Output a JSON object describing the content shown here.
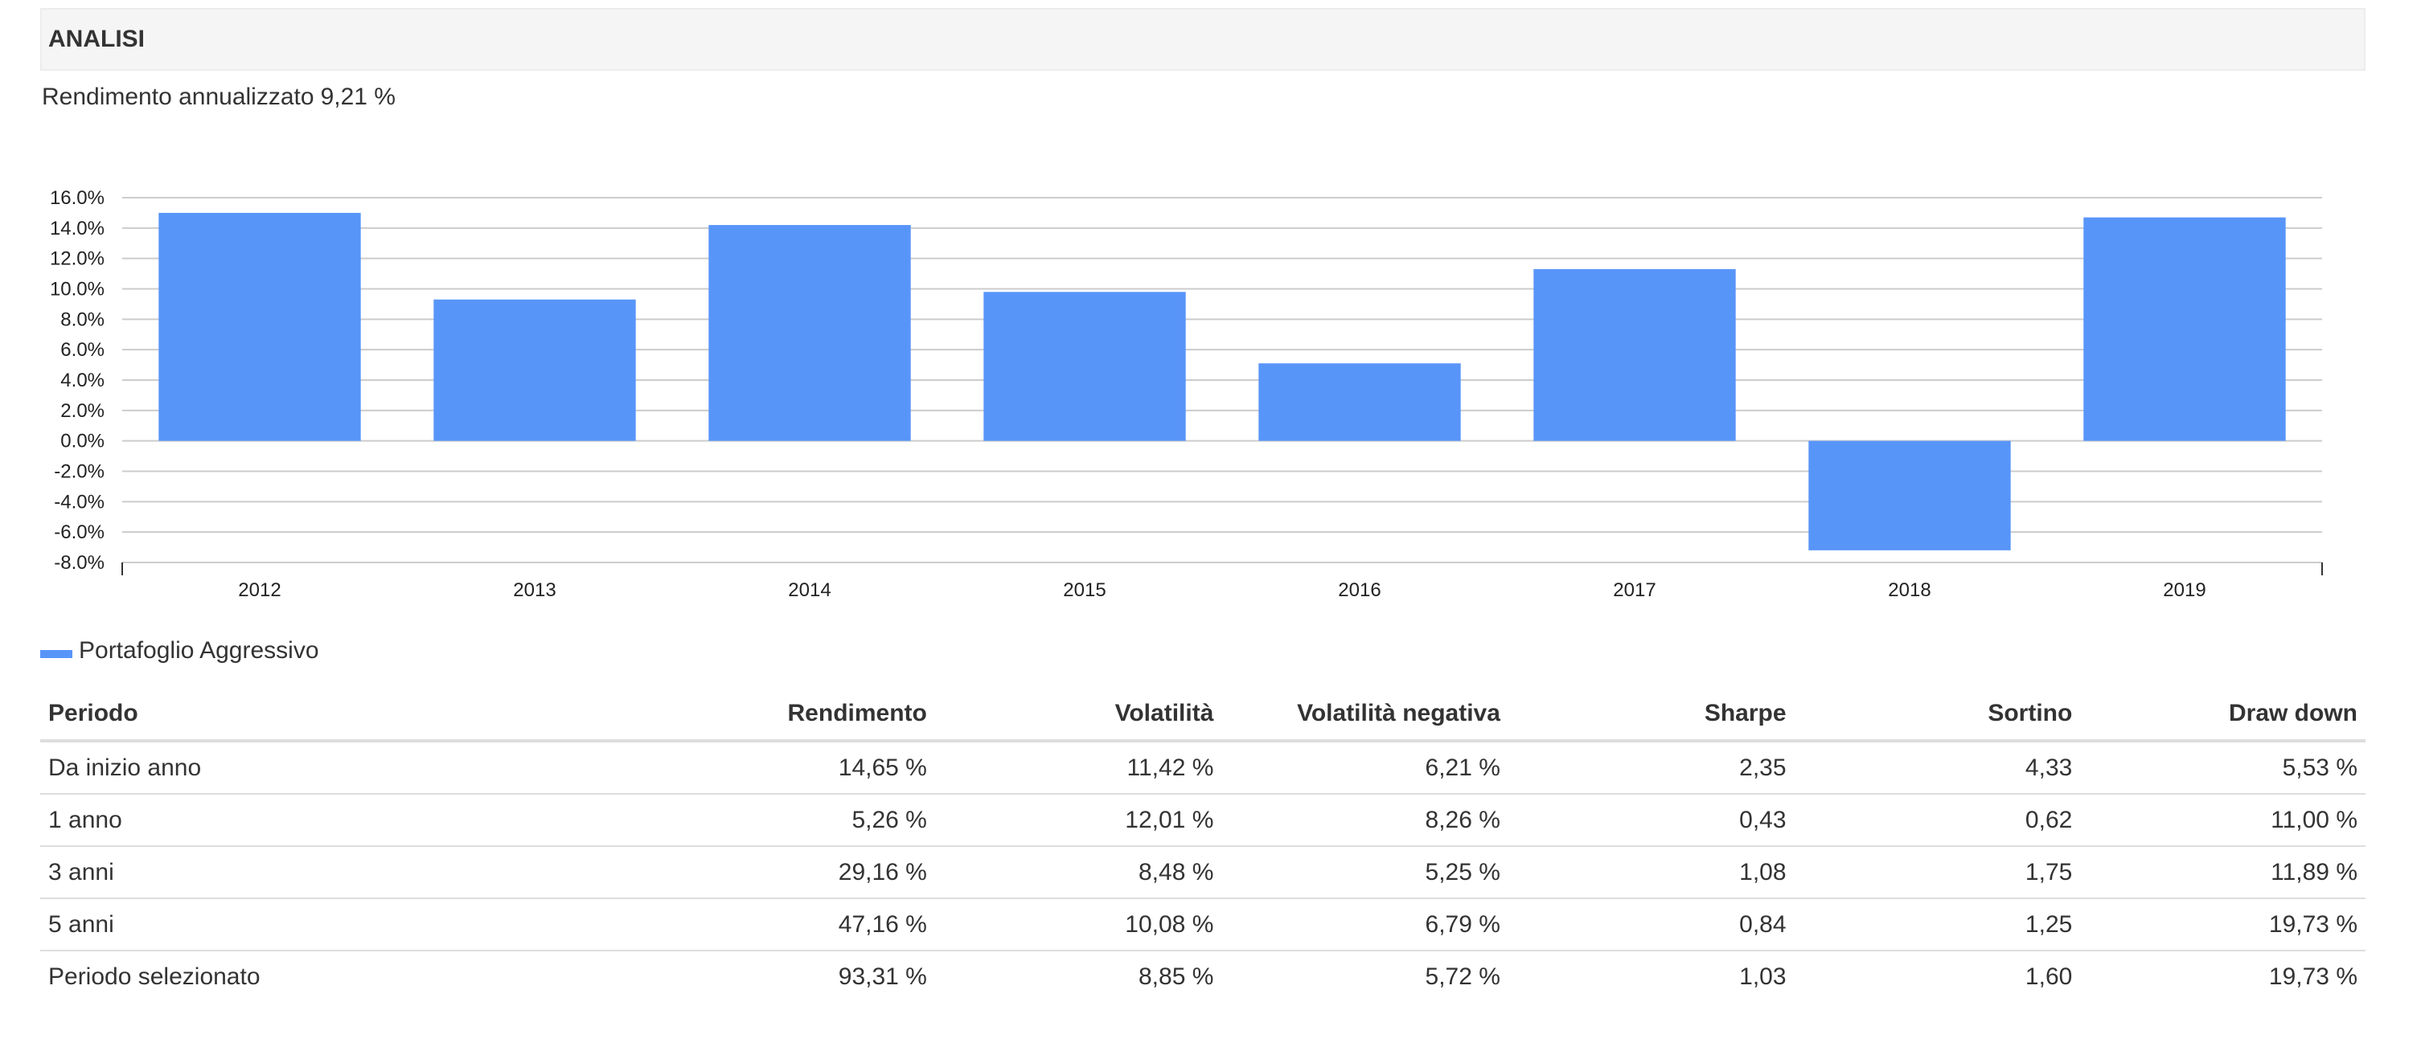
{
  "section": {
    "title": "ANALISI"
  },
  "summary": {
    "label": "Rendimento annualizzato",
    "value": "9,21 %"
  },
  "chart_data": {
    "type": "bar",
    "categories": [
      "2012",
      "2013",
      "2014",
      "2015",
      "2016",
      "2017",
      "2018",
      "2019"
    ],
    "series": [
      {
        "name": "Portafoglio Aggressivo",
        "values": [
          15.0,
          9.3,
          14.2,
          9.8,
          5.1,
          11.3,
          -7.2,
          14.7
        ]
      }
    ],
    "ylim": [
      -8,
      16
    ],
    "yticks": [
      "16.0%",
      "14.0%",
      "12.0%",
      "10.0%",
      "8.0%",
      "6.0%",
      "4.0%",
      "2.0%",
      "0.0%",
      "-2.0%",
      "-4.0%",
      "-6.0%",
      "-8.0%"
    ],
    "grid": true,
    "legend": "bottom-left",
    "color": "#5895f9"
  },
  "legend": {
    "label": "Portafoglio Aggressivo",
    "color": "#5895f9"
  },
  "table": {
    "headers": [
      "Periodo",
      "Rendimento",
      "Volatilità",
      "Volatilità negativa",
      "Sharpe",
      "Sortino",
      "Draw down"
    ],
    "rows": [
      [
        "Da inizio anno",
        "14,65 %",
        "11,42 %",
        "6,21 %",
        "2,35",
        "4,33",
        "5,53 %"
      ],
      [
        "1 anno",
        "5,26 %",
        "12,01 %",
        "8,26 %",
        "0,43",
        "0,62",
        "11,00 %"
      ],
      [
        "3 anni",
        "29,16 %",
        "8,48 %",
        "5,25 %",
        "1,08",
        "1,75",
        "11,89 %"
      ],
      [
        "5 anni",
        "47,16 %",
        "10,08 %",
        "6,79 %",
        "0,84",
        "1,25",
        "19,73 %"
      ],
      [
        "Periodo selezionato",
        "93,31 %",
        "8,85 %",
        "5,72 %",
        "1,03",
        "1,60",
        "19,73 %"
      ]
    ]
  }
}
